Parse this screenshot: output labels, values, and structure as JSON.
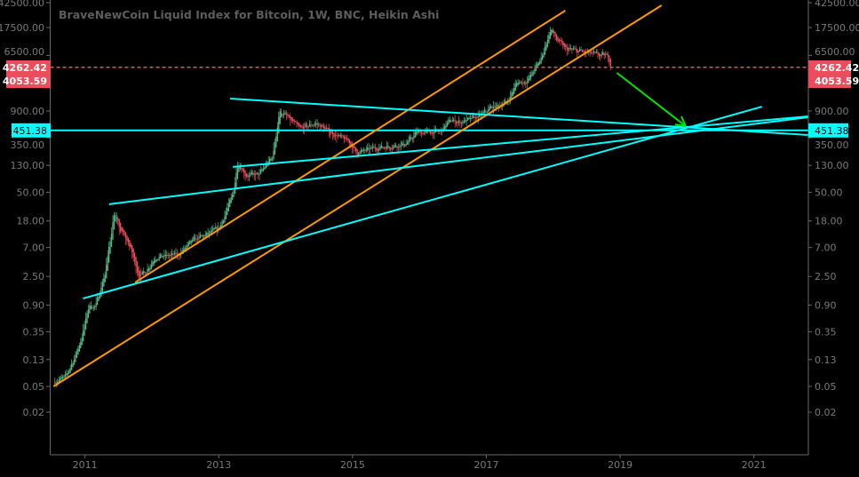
{
  "chart_data": {
    "type": "candlestick",
    "title": "BraveNewCoin Liquid Index for Bitcoin, 1W, BNC, Heikin Ashi",
    "y_scale": "log",
    "ylim": [
      0.01,
      45000
    ],
    "xlim": [
      2010.5,
      2021.8
    ],
    "grid": false,
    "y_ticks": [
      "42500.00",
      "17500.00",
      "6500.00",
      "900.00",
      "350.00",
      "130.00",
      "50.00",
      "18.00",
      "7.00",
      "2.50",
      "0.90",
      "0.35",
      "0.13",
      "0.05",
      "0.02"
    ],
    "x_ticks": [
      "2011",
      "2013",
      "2015",
      "2017",
      "2019",
      "2021"
    ],
    "price_series": [
      [
        2010.55,
        0.06
      ],
      [
        2010.7,
        0.07
      ],
      [
        2010.85,
        0.15
      ],
      [
        2010.95,
        0.3
      ],
      [
        2011.05,
        0.9
      ],
      [
        2011.15,
        0.85
      ],
      [
        2011.3,
        3
      ],
      [
        2011.43,
        25
      ],
      [
        2011.5,
        14
      ],
      [
        2011.65,
        8
      ],
      [
        2011.8,
        2.5
      ],
      [
        2011.9,
        3
      ],
      [
        2012.05,
        5
      ],
      [
        2012.4,
        5.5
      ],
      [
        2012.6,
        9
      ],
      [
        2012.8,
        11
      ],
      [
        2013.0,
        14
      ],
      [
        2013.2,
        45
      ],
      [
        2013.28,
        150
      ],
      [
        2013.4,
        90
      ],
      [
        2013.6,
        95
      ],
      [
        2013.8,
        180
      ],
      [
        2013.9,
        900
      ],
      [
        2014.0,
        750
      ],
      [
        2014.2,
        480
      ],
      [
        2014.45,
        580
      ],
      [
        2014.7,
        400
      ],
      [
        2014.95,
        300
      ],
      [
        2015.05,
        200
      ],
      [
        2015.3,
        240
      ],
      [
        2015.6,
        260
      ],
      [
        2015.8,
        280
      ],
      [
        2015.95,
        420
      ],
      [
        2016.3,
        430
      ],
      [
        2016.45,
        650
      ],
      [
        2016.6,
        600
      ],
      [
        2016.9,
        750
      ],
      [
        2017.05,
        1000
      ],
      [
        2017.3,
        1200
      ],
      [
        2017.45,
        2500
      ],
      [
        2017.6,
        2600
      ],
      [
        2017.8,
        5500
      ],
      [
        2017.96,
        17000
      ],
      [
        2018.05,
        11000
      ],
      [
        2018.2,
        8000
      ],
      [
        2018.4,
        7500
      ],
      [
        2018.55,
        7000
      ],
      [
        2018.7,
        6500
      ],
      [
        2018.82,
        6300
      ],
      [
        2018.87,
        4053.59
      ]
    ],
    "price_labels": [
      {
        "text": "4262.42",
        "value": 4262.42,
        "color": "#eb4d5c",
        "style": "dashed-line"
      },
      {
        "text": "4053.59",
        "value": 4053.59,
        "color": "#eb4d5c"
      },
      {
        "text": "451.38",
        "value": 451.38,
        "color": "#00ffff"
      }
    ],
    "trendlines": [
      {
        "color": "#ff9800",
        "from": [
          2010.53,
          0.05
        ],
        "to": [
          2019.62,
          38600
        ]
      },
      {
        "color": "#ff9800",
        "from": [
          2011.75,
          2.02
        ],
        "to": [
          2018.18,
          32000
        ]
      },
      {
        "color": "#00ffff",
        "from": [
          2013.17,
          1400
        ],
        "to": [
          2021.81,
          383
        ]
      },
      {
        "color": "#00ffff",
        "from": [
          2011.36,
          32.6
        ],
        "to": [
          2021.81,
          720
        ]
      },
      {
        "color": "#00ffff",
        "from": [
          2013.21,
          123
        ],
        "to": [
          2021.81,
          743
        ]
      },
      {
        "color": "#00ffff",
        "from": [
          2010.97,
          1.14
        ],
        "to": [
          2021.12,
          1050
        ]
      }
    ],
    "arrow": {
      "color": "#00e600",
      "from": [
        2018.95,
        3510
      ],
      "to": [
        2019.98,
        525
      ]
    },
    "colors": {
      "up": "#53b987",
      "down": "#eb4d5c",
      "background": "#000000",
      "axis": "#6a6a6a"
    }
  }
}
